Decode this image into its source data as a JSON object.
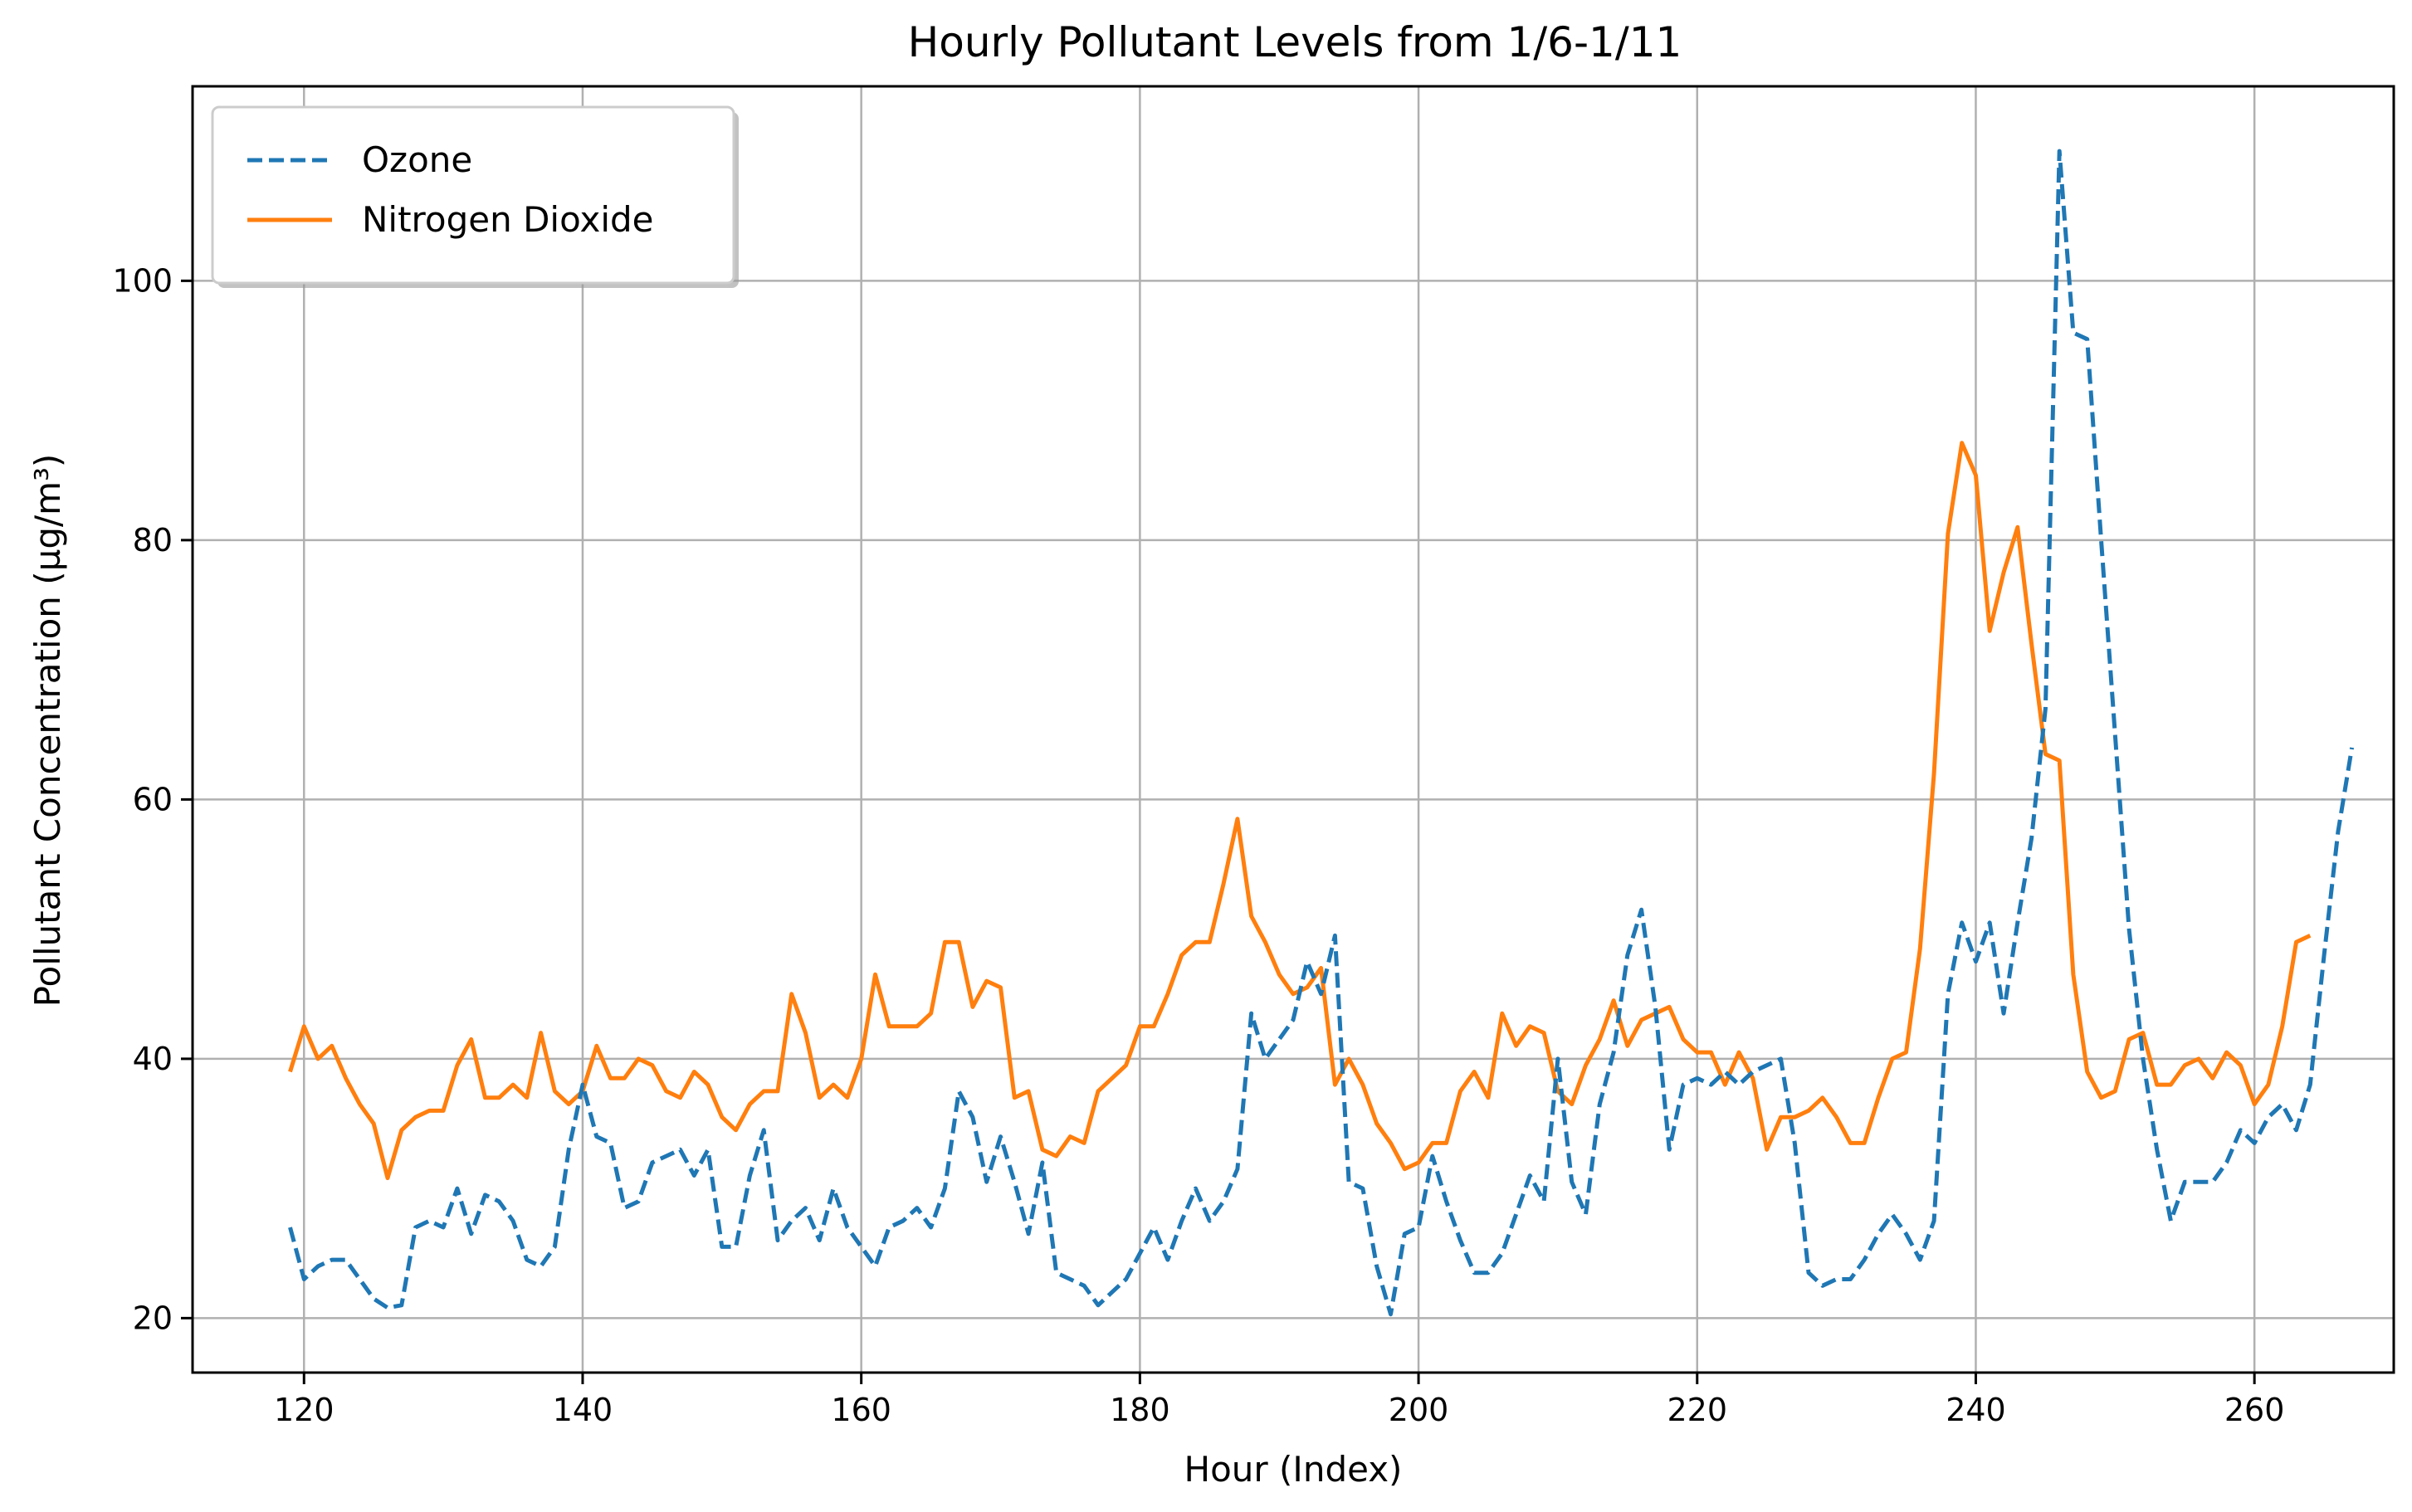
{
  "chart_data": {
    "type": "line",
    "title": "Hourly Pollutant Levels from 1/6-1/11",
    "xlabel": "Hour (Index)",
    "ylabel": "Pollutant Concentration (µg/m³)",
    "xlim": [
      112,
      270
    ],
    "ylim": [
      15.8,
      115
    ],
    "xticks": [
      120,
      140,
      160,
      180,
      200,
      220,
      240,
      260
    ],
    "yticks": [
      20,
      40,
      60,
      80,
      100
    ],
    "grid": true,
    "legend_position": "top-left",
    "x_start": 119,
    "series": [
      {
        "name": "Ozone",
        "color": "#1f77b4",
        "style": "dashed",
        "values": [
          27,
          23,
          24,
          24.5,
          24.5,
          23,
          21.5,
          20.8,
          21,
          27,
          27.5,
          27,
          30,
          26.5,
          29.5,
          29,
          27.5,
          24.5,
          24,
          25.5,
          33,
          38,
          34,
          33.5,
          28.5,
          29,
          32,
          32.5,
          33,
          31,
          33,
          25.5,
          25.5,
          31,
          34.5,
          26,
          27.5,
          28.5,
          26,
          30,
          27,
          25.5,
          24,
          27,
          27.5,
          28.5,
          27,
          30,
          37.5,
          35.5,
          30.5,
          34,
          30.5,
          26.5,
          32,
          23.5,
          23,
          22.5,
          21,
          22,
          23,
          25,
          27,
          24.5,
          27.5,
          30,
          27.5,
          29,
          31.5,
          43.5,
          40,
          41.5,
          43,
          47.5,
          45,
          49.5,
          30.5,
          30,
          24,
          20.3,
          26.5,
          27,
          32.5,
          29,
          26,
          23.5,
          23.5,
          25,
          28,
          31,
          29,
          40,
          30.5,
          28,
          36.5,
          40.5,
          48,
          51.5,
          44,
          33,
          38,
          38.5,
          38,
          39,
          38,
          39,
          39.5,
          40,
          33.5,
          23.5,
          22.5,
          23,
          23,
          24.5,
          26.5,
          28,
          26.5,
          24.5,
          27.5,
          45,
          50.5,
          47.5,
          50.5,
          43.5,
          50.5,
          57,
          67,
          110,
          96,
          95.5,
          80,
          65,
          50,
          40,
          33,
          27.5,
          30.5,
          30.5,
          30.5,
          32,
          34.5,
          33.5,
          35.5,
          36.5,
          34.5,
          38,
          48,
          57.5,
          64
        ]
      },
      {
        "name": "Nitrogen Dioxide",
        "color": "#ff7f0e",
        "style": "solid",
        "values": [
          39,
          42.5,
          40,
          41,
          38.5,
          36.5,
          35,
          30.8,
          34.5,
          35.5,
          36,
          36,
          39.5,
          41.5,
          37,
          37,
          38,
          37,
          42,
          37.5,
          36.5,
          37.5,
          41,
          38.5,
          38.5,
          40,
          39.5,
          37.5,
          37,
          39,
          38,
          35.5,
          34.5,
          36.5,
          37.5,
          37.5,
          45,
          42,
          37,
          38,
          37,
          40,
          46.5,
          42.5,
          42.5,
          42.5,
          43.5,
          49,
          49,
          44,
          46,
          45.5,
          37,
          37.5,
          33,
          32.5,
          34,
          33.5,
          37.5,
          38.5,
          39.5,
          42.5,
          42.5,
          45,
          48,
          49,
          49,
          53.5,
          58.5,
          51,
          49,
          46.5,
          45,
          45.5,
          47,
          38,
          40,
          38,
          35,
          33.5,
          31.5,
          32,
          33.5,
          33.5,
          37.5,
          39,
          37,
          43.5,
          41,
          42.5,
          42,
          37.5,
          36.5,
          39.5,
          41.5,
          44.5,
          41,
          43,
          43.5,
          44,
          41.5,
          40.5,
          40.5,
          38,
          40.5,
          38.5,
          33,
          35.5,
          35.5,
          36,
          37,
          35.5,
          33.5,
          33.5,
          37,
          40,
          40.5,
          48.5,
          62,
          80.5,
          87.5,
          85,
          73,
          77.5,
          81,
          72,
          63.5,
          63,
          46.5,
          39,
          37,
          37.5,
          41.5,
          42,
          38,
          38,
          39.5,
          40,
          38.5,
          40.5,
          39.5,
          36.5,
          38,
          42.5,
          49,
          49.5
        ]
      }
    ]
  }
}
